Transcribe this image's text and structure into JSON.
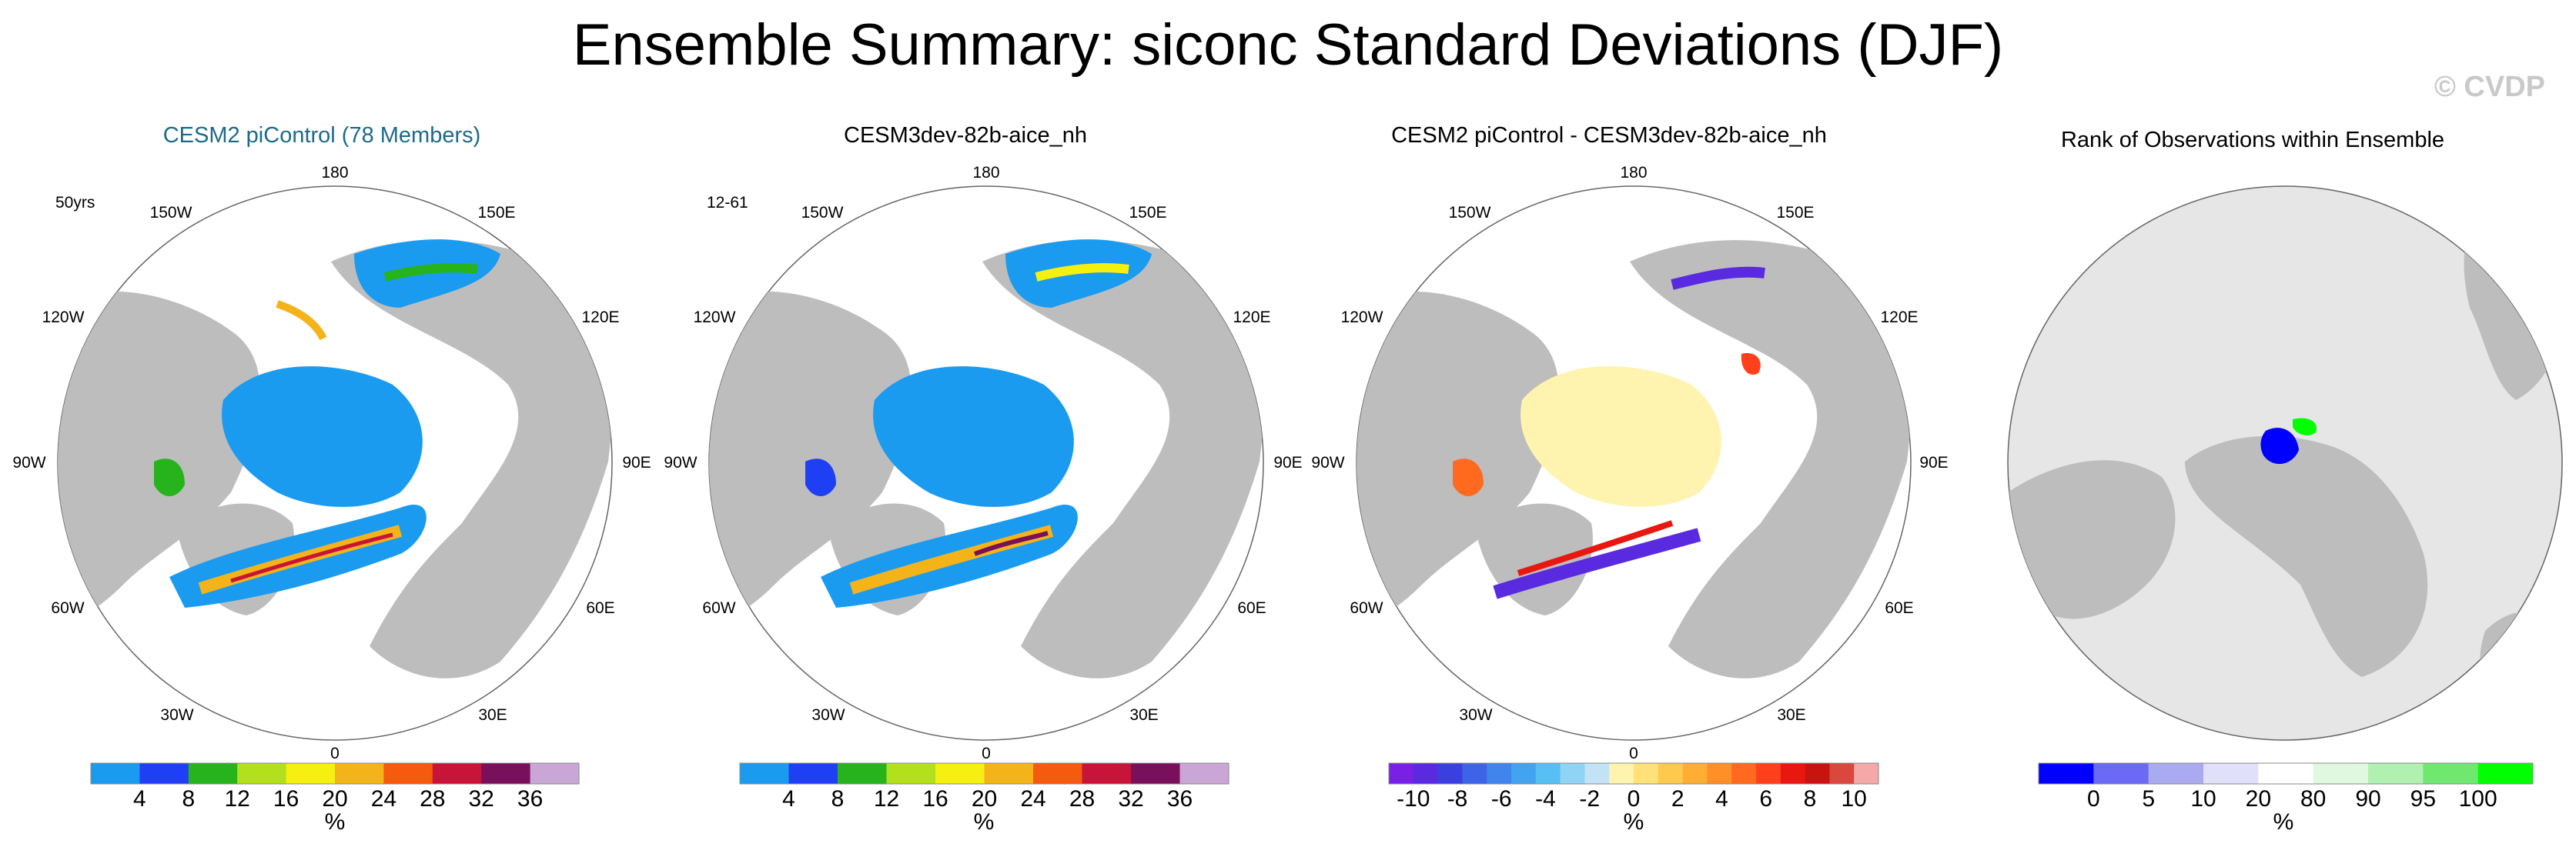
{
  "title": "Ensemble Summary: siconc Standard Deviations (DJF)",
  "watermark": "© CVDP",
  "longitude_labels": [
    "180",
    "150E",
    "120E",
    "90E",
    "60E",
    "30E",
    "0",
    "30W",
    "60W",
    "90W",
    "120W",
    "150W"
  ],
  "panels": [
    {
      "title": "CESM2 piControl (78 Members)",
      "period": "50yrs",
      "colorbar": {
        "colors": [
          "#1a9bf0",
          "#1f3ff5",
          "#26b31c",
          "#b3e01c",
          "#f5f00f",
          "#f5b31a",
          "#f55a0f",
          "#c71438",
          "#7a0f5c",
          "#c9a6d6"
        ],
        "ticks": [
          "4",
          "8",
          "12",
          "16",
          "20",
          "24",
          "28",
          "32",
          "36"
        ],
        "unit": "%"
      }
    },
    {
      "title": "CESM3dev-82b-aice_nh",
      "period": "12-61",
      "colorbar": {
        "colors": [
          "#1a9bf0",
          "#1f3ff5",
          "#26b31c",
          "#b3e01c",
          "#f5f00f",
          "#f5b31a",
          "#f55a0f",
          "#c71438",
          "#7a0f5c",
          "#c9a6d6"
        ],
        "ticks": [
          "4",
          "8",
          "12",
          "16",
          "20",
          "24",
          "28",
          "32",
          "36"
        ],
        "unit": "%"
      }
    },
    {
      "title": "CESM2 piControl - CESM3dev-82b-aice_nh",
      "period": "",
      "colorbar": {
        "colors": [
          "#7a1fe6",
          "#5a2ae0",
          "#3a3fe0",
          "#3d64e6",
          "#3f85eb",
          "#42a3f0",
          "#58bff5",
          "#8fd3f5",
          "#c2e3f5",
          "#fff3b0",
          "#ffe17a",
          "#ffc94f",
          "#ffad33",
          "#ff8f26",
          "#ff6a1f",
          "#ff401a",
          "#e8170f",
          "#c7140f",
          "#d9473d",
          "#f5a8a8"
        ],
        "ticks": [
          "-10",
          "-8",
          "-6",
          "-4",
          "-2",
          "0",
          "2",
          "4",
          "6",
          "8",
          "10"
        ],
        "unit": "%"
      }
    },
    {
      "title": "Rank of Observations within Ensemble",
      "period": "",
      "colorbar": {
        "colors": [
          "#0000ff",
          "#6a6af5",
          "#aaaaf0",
          "#e0e0fa",
          "#ffffff",
          "#e0f8e0",
          "#b0f0b0",
          "#70e870",
          "#00ff00"
        ],
        "ticks": [
          "0",
          "5",
          "10",
          "20",
          "80",
          "90",
          "95",
          "100"
        ],
        "unit": "%"
      }
    }
  ]
}
